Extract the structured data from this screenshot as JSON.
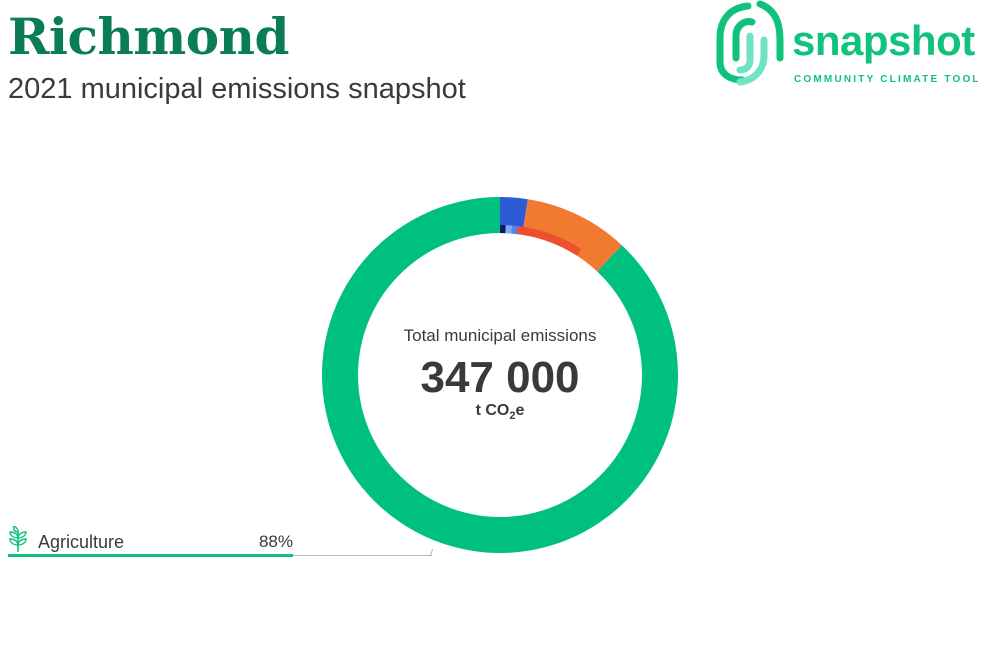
{
  "header": {
    "title": "Richmond",
    "subtitle": "2021 municipal emissions snapshot"
  },
  "brand": {
    "name": "snapshot",
    "tagline": "COMMUNITY CLIMATE TOOL",
    "color": "#10c27c"
  },
  "chart_data": {
    "type": "pie",
    "variant": "donut",
    "center": {
      "label": "Total municipal emissions",
      "value": "347 000",
      "unit_prefix": "t CO",
      "unit_sub": "2",
      "unit_suffix": "e"
    },
    "total": 347000,
    "unit": "t CO2e",
    "outer_ring": [
      {
        "name": "Agriculture",
        "percent": 88,
        "color": "#00c07f"
      },
      {
        "percent": 2.5,
        "color": "#2d5bd6"
      },
      {
        "percent": 9.5,
        "color": "#f07a30"
      }
    ],
    "inner_ring": [
      {
        "percent": 0.6,
        "color": "#0b1a5c"
      },
      {
        "percent": 0.7,
        "color": "#7fa8f0"
      },
      {
        "percent": 0.6,
        "color": "#4e86e6"
      },
      {
        "percent": 7.2,
        "color": "#ee4f2e"
      }
    ],
    "callout": {
      "label": "Agriculture",
      "percent_text": "88%",
      "percent": 88,
      "icon": "wheat-icon"
    }
  }
}
